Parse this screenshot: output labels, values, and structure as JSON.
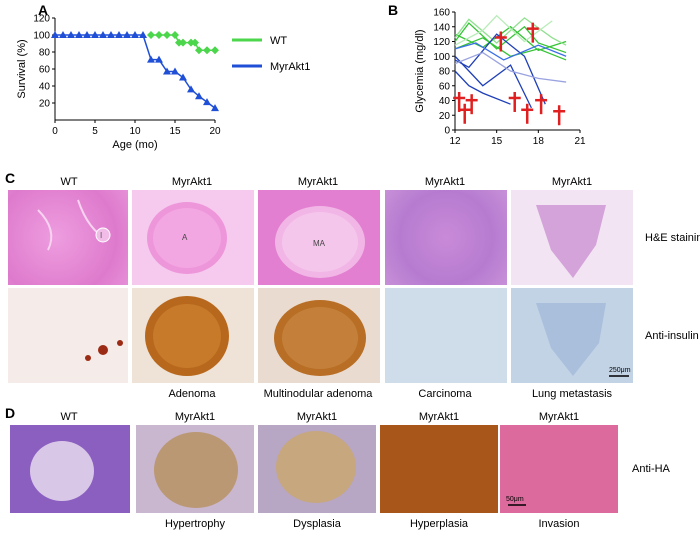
{
  "panels": {
    "A": "A",
    "B": "B",
    "C": "C",
    "D": "D"
  },
  "chart_data": [
    {
      "type": "line",
      "panel": "A",
      "xlabel": "Age (mo)",
      "ylabel": "Survival (%)",
      "xlim": [
        0,
        20
      ],
      "ylim": [
        0,
        120
      ],
      "xticks": [
        0,
        5,
        10,
        15,
        20
      ],
      "yticks": [
        20,
        40,
        60,
        80,
        100,
        120
      ],
      "legend_placement": "right",
      "series": [
        {
          "name": "WT",
          "color": "#4bd64b",
          "marker": "diamond",
          "x": [
            12,
            13,
            14,
            15,
            15.5,
            16,
            17,
            17.5,
            18,
            19,
            20
          ],
          "y": [
            100,
            100,
            100,
            100,
            91,
            91,
            91,
            91,
            82,
            82,
            82
          ]
        },
        {
          "name": "MyrAkt1",
          "color": "#1f4fd6",
          "marker": "triangle",
          "x": [
            0,
            1,
            2,
            3,
            4,
            5,
            6,
            7,
            8,
            9,
            10,
            11,
            12,
            13,
            14,
            15,
            16,
            17,
            18,
            19,
            20
          ],
          "y": [
            100,
            100,
            100,
            100,
            100,
            100,
            100,
            100,
            100,
            100,
            100,
            100,
            71,
            71,
            57,
            57,
            50,
            36,
            28,
            21,
            14
          ]
        }
      ]
    },
    {
      "type": "line",
      "panel": "B",
      "xlabel": "",
      "ylabel": "Glycemia (mg/dl)",
      "xlim": [
        12,
        21
      ],
      "ylim": [
        0,
        160
      ],
      "xticks": [
        12,
        15,
        18,
        21
      ],
      "yticks": [
        0,
        20,
        40,
        60,
        80,
        100,
        120,
        140,
        160
      ],
      "series": [
        {
          "group": "WT",
          "color": "#37c437",
          "x": [
            12,
            13,
            15,
            17,
            18,
            20
          ],
          "y": [
            120,
            145,
            110,
            140,
            118,
            105
          ]
        },
        {
          "group": "WT",
          "color": "#37c437",
          "x": [
            12,
            14,
            16,
            18,
            20
          ],
          "y": [
            130,
            112,
            140,
            108,
            120
          ]
        },
        {
          "group": "WT",
          "color": "#37c437",
          "x": [
            12,
            14,
            16,
            18,
            20
          ],
          "y": [
            110,
            125,
            100,
            110,
            95
          ]
        },
        {
          "group": "WT",
          "color": "#8fe08f",
          "x": [
            12,
            13,
            15,
            17,
            19,
            20
          ],
          "y": [
            125,
            150,
            118,
            152,
            125,
            115
          ]
        },
        {
          "group": "WT",
          "color": "#b8ecb8",
          "x": [
            12,
            14,
            15,
            17,
            19
          ],
          "y": [
            115,
            135,
            155,
            120,
            148
          ]
        },
        {
          "group": "MyrAkt1",
          "color": "#1f3fb8",
          "x": [
            12,
            13,
            15,
            17,
            18.5
          ],
          "y": [
            95,
            85,
            130,
            100,
            35
          ]
        },
        {
          "group": "MyrAkt1",
          "color": "#1f3fb8",
          "x": [
            12,
            14,
            16,
            17.5
          ],
          "y": [
            100,
            60,
            88,
            30
          ]
        },
        {
          "group": "MyrAkt1",
          "color": "#1f3fb8",
          "x": [
            12,
            13,
            14,
            16
          ],
          "y": [
            80,
            60,
            50,
            35
          ]
        },
        {
          "group": "MyrAkt1",
          "color": "#3a6ee8",
          "x": [
            12,
            13.5,
            15.5,
            18,
            20
          ],
          "y": [
            110,
            118,
            95,
            115,
            100
          ]
        },
        {
          "group": "MyrAkt1",
          "color": "#9aa3e0",
          "x": [
            12,
            14,
            16,
            18,
            20
          ],
          "y": [
            90,
            105,
            80,
            70,
            65
          ]
        }
      ],
      "death_markers": [
        {
          "x": 12.3,
          "y": 38
        },
        {
          "x": 12.7,
          "y": 22
        },
        {
          "x": 13.2,
          "y": 35
        },
        {
          "x": 15.3,
          "y": 120
        },
        {
          "x": 16.3,
          "y": 38
        },
        {
          "x": 17.2,
          "y": 22
        },
        {
          "x": 17.6,
          "y": 132
        },
        {
          "x": 18.2,
          "y": 35
        },
        {
          "x": 19.5,
          "y": 20
        }
      ]
    }
  ],
  "panel_c": {
    "column_titles": [
      "WT",
      "MyrAkt1",
      "MyrAkt1",
      "MyrAkt1",
      "MyrAkt1"
    ],
    "row_labels": [
      "H&E staining",
      "Anti-insulin"
    ],
    "captions": [
      "Adenoma",
      "Multinodular adenoma",
      "Carcinoma",
      "Lung metastasis"
    ],
    "image_letters": [
      "I",
      "A",
      "MA"
    ],
    "scale_bar": "250μm"
  },
  "panel_d": {
    "column_titles": [
      "WT",
      "MyrAkt1",
      "MyrAkt1",
      "MyrAkt1",
      "MyrAkt1"
    ],
    "row_label": "Anti-HA",
    "captions": [
      "Hypertrophy",
      "Dysplasia",
      "Hyperplasia",
      "Invasion"
    ],
    "scale_bar": "50μm"
  },
  "colors": {
    "he_pink": "#e98fd6",
    "he_pale": "#f2c5ec",
    "insulin_brown": "#b8691e",
    "insulin_bg": "#f3ebe8",
    "stain_blue": "#c2d3e6",
    "death_cross": "#e02020"
  }
}
